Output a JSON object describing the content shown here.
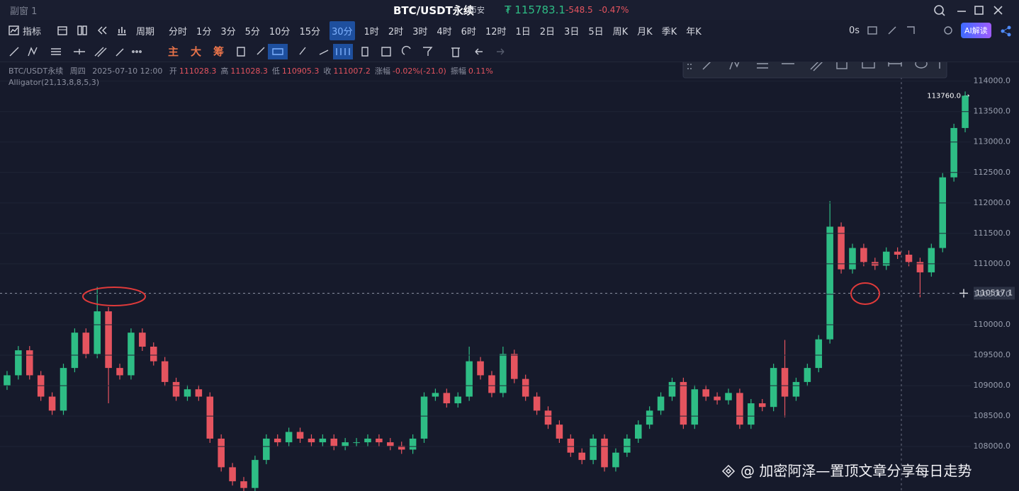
{
  "window": {
    "title": "副窗 1"
  },
  "ticker": {
    "symbol": "BTC/USDT永续",
    "exchange": "币安",
    "price": "₮ 115783.1",
    "change": "-548.5",
    "change_pct": "-0.47%"
  },
  "toolbar": {
    "indicators": "指标",
    "period_menu": "周期",
    "periods_before": [
      "分时",
      "1分",
      "3分",
      "5分",
      "10分",
      "15分"
    ],
    "active_period": "30分",
    "periods_after": [
      "1时",
      "2时",
      "3时",
      "4时",
      "6时",
      "12时",
      "1日",
      "2日",
      "3日",
      "5日",
      "周K",
      "月K",
      "季K",
      "年K"
    ],
    "countdown": "0s",
    "ai_button": "AI解读",
    "chart_modes": [
      "主",
      "大",
      "筹"
    ]
  },
  "info": {
    "symbol": "BTC/USDT永续",
    "weekday": "周四",
    "datetime": "2025-07-10 12:00",
    "fields": [
      {
        "label": "开",
        "value": "111028.3"
      },
      {
        "label": "高",
        "value": "111028.3"
      },
      {
        "label": "低",
        "value": "110905.3"
      },
      {
        "label": "收",
        "value": "111007.2"
      },
      {
        "label": "涨幅",
        "value": "-0.02%(-21.0)"
      },
      {
        "label": "振幅",
        "value": "0.11%"
      }
    ],
    "indicator": "Alligator(21,13,8,8,5,3)"
  },
  "chart_data": {
    "type": "candlestick",
    "open": [
      109000,
      109170,
      109580,
      109170,
      108820,
      108590,
      109290,
      109870,
      109520,
      110220,
      109290,
      109170,
      109870,
      109640,
      109400,
      109060,
      108820,
      108940,
      108820,
      108130,
      107660,
      107430,
      107320,
      107780,
      108130,
      108070,
      108240,
      108130,
      108070,
      108130,
      108010,
      108070,
      108070,
      108130,
      108070,
      108010,
      107950,
      108130,
      108820,
      108880,
      108710,
      108820,
      109400,
      109170,
      108880,
      109520,
      109110,
      108820,
      108590,
      108360,
      108130,
      107900,
      107780,
      108130,
      107660,
      107900,
      108130,
      108360,
      108590,
      108820,
      109060,
      108360,
      108940,
      108820,
      108760,
      108880,
      108360,
      108710,
      108650,
      109290,
      108820,
      109060,
      109290,
      109760,
      111610,
      110910,
      111260,
      111030,
      110970,
      111200,
      111150,
      111030,
      110860,
      111260,
      112420,
      113230
    ],
    "high": [
      109240,
      109650,
      109650,
      109240,
      108890,
      109360,
      109940,
      109940,
      110620,
      110290,
      109360,
      109940,
      109940,
      109710,
      109470,
      109130,
      109010,
      109010,
      108890,
      108200,
      107730,
      107500,
      107850,
      108200,
      108200,
      108310,
      108310,
      108200,
      108200,
      108200,
      108140,
      108140,
      108200,
      108200,
      108140,
      108080,
      108200,
      108890,
      108950,
      108950,
      108890,
      109640,
      109470,
      109240,
      109640,
      109590,
      109180,
      108890,
      108660,
      108430,
      108200,
      107970,
      108200,
      108200,
      107970,
      108200,
      108430,
      108660,
      108890,
      109130,
      109130,
      109010,
      109010,
      108890,
      108950,
      108950,
      108780,
      108780,
      109360,
      109750,
      109130,
      109360,
      109830,
      112030,
      111680,
      111330,
      111330,
      111100,
      111270,
      111270,
      111220,
      111100,
      111330,
      112490,
      113300,
      113830
    ],
    "low": [
      108930,
      109100,
      109100,
      108750,
      108520,
      108520,
      109220,
      109450,
      109450,
      108710,
      109100,
      109100,
      109570,
      109330,
      108990,
      108750,
      108750,
      108750,
      108060,
      107590,
      107360,
      107200,
      107250,
      107710,
      108000,
      108000,
      108060,
      108000,
      108000,
      107940,
      107940,
      108000,
      108000,
      108000,
      107940,
      107880,
      107880,
      108060,
      108750,
      108640,
      108640,
      108750,
      109100,
      108810,
      108810,
      109040,
      108750,
      108520,
      108290,
      108060,
      107830,
      107710,
      107710,
      107590,
      107590,
      107830,
      108060,
      108290,
      108520,
      108750,
      108290,
      108290,
      108750,
      108690,
      108690,
      108290,
      108290,
      108580,
      108580,
      108480,
      108750,
      108990,
      109220,
      109690,
      110840,
      110840,
      110960,
      110900,
      110900,
      111080,
      110960,
      110450,
      110790,
      111190,
      112350,
      113160
    ],
    "close": [
      109170,
      109580,
      109170,
      108820,
      108590,
      109290,
      109870,
      109520,
      110220,
      109290,
      109170,
      109870,
      109640,
      109400,
      109060,
      108820,
      108940,
      108820,
      108130,
      107660,
      107430,
      107320,
      107780,
      108130,
      108070,
      108240,
      108130,
      108070,
      108130,
      108010,
      108070,
      108070,
      108130,
      108070,
      108010,
      107950,
      108130,
      108820,
      108880,
      108710,
      108820,
      109400,
      109170,
      108880,
      109520,
      109110,
      108820,
      108590,
      108360,
      108130,
      107900,
      107780,
      108130,
      107660,
      107900,
      108130,
      108360,
      108590,
      108820,
      109060,
      108360,
      108940,
      108820,
      108760,
      108880,
      108360,
      108710,
      108650,
      109290,
      108820,
      109060,
      109290,
      109760,
      111610,
      110910,
      111260,
      111030,
      110970,
      111200,
      111150,
      111030,
      110860,
      111260,
      112420,
      113230,
      113760
    ],
    "up_color": "#2ebd85",
    "down_color": "#e5545f",
    "ylim": [
      107270,
      114600
    ],
    "yticks": [
      {
        "value": 108000,
        "label": "108000.0"
      },
      {
        "value": 108500,
        "label": "108500.0"
      },
      {
        "value": 109000,
        "label": "109000.0"
      },
      {
        "value": 109500,
        "label": "109500.0"
      },
      {
        "value": 110000,
        "label": "110000.0"
      },
      {
        "value": 110500,
        "label": "110500.0"
      },
      {
        "value": 111000,
        "label": "111000.0"
      },
      {
        "value": 111500,
        "label": "111500.0"
      },
      {
        "value": 112000,
        "label": "112000.0"
      },
      {
        "value": 112500,
        "label": "112500.0"
      },
      {
        "value": 113000,
        "label": "113000.0"
      },
      {
        "value": 113500,
        "label": "113500.0"
      },
      {
        "value": 114000,
        "label": "114000.0"
      }
    ],
    "grid": true,
    "last_price_label": "113760.0",
    "crosshair": {
      "value": 110517.1,
      "label": "110517.1"
    }
  },
  "watermark": "@ 加密阿泽—置顶文章分享每日走势"
}
